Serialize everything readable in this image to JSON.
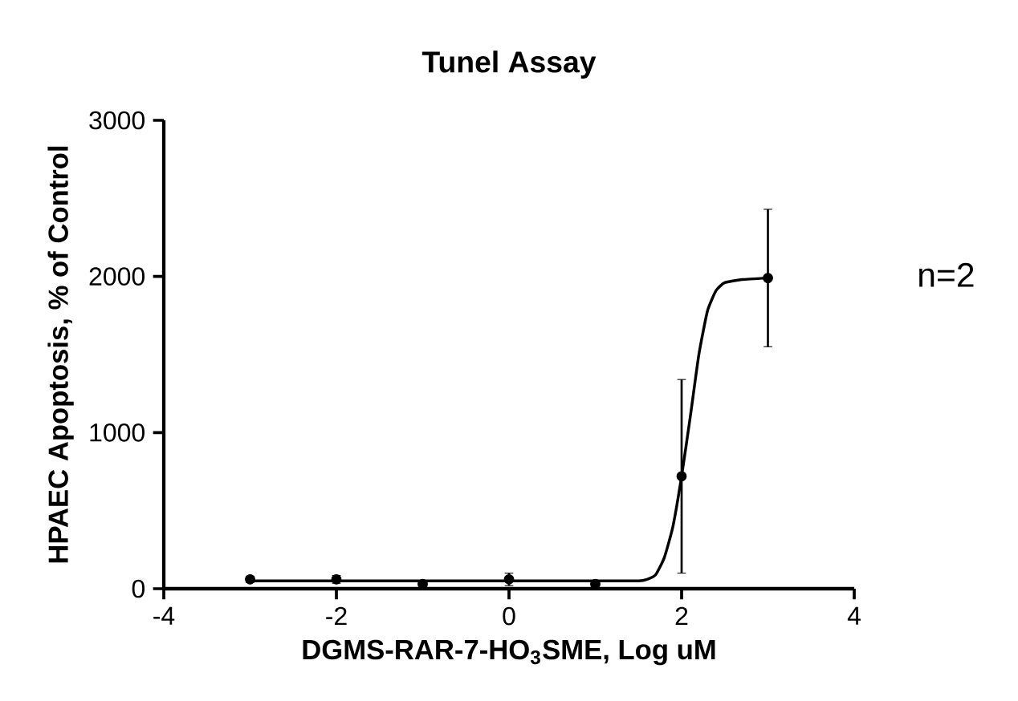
{
  "chart_data": {
    "type": "scatter",
    "title": "Tunel Assay",
    "xlabel": "DGMS-RAR-7-HO$_{3}$SME, Log uM",
    "ylabel": "HPAEC Apoptosis, % of Control",
    "annotations": [
      "n=2"
    ],
    "xlim": [
      -4,
      4
    ],
    "xticks": [
      -4,
      -2,
      0,
      2,
      4
    ],
    "ylim": [
      0,
      3000
    ],
    "yticks": [
      0,
      1000,
      2000,
      3000
    ],
    "grid": false,
    "series": [
      {
        "color": "#000000",
        "marker": "circle",
        "x": [
          -3,
          -2,
          -1,
          0,
          1,
          2,
          3
        ],
        "values": [
          60,
          60,
          30,
          60,
          30,
          720,
          1990
        ],
        "errors": [
          20,
          25,
          10,
          40,
          10,
          620,
          440
        ]
      },
      {
        "type": "line",
        "color": "#000000",
        "marker": "none",
        "x": [
          -3,
          -2,
          -1,
          0,
          1,
          1.5,
          1.6,
          1.7,
          1.8,
          1.9,
          2.0,
          2.1,
          2.2,
          2.3,
          2.4,
          2.5,
          2.7,
          3
        ],
        "values": [
          50,
          50,
          50,
          50,
          50,
          50,
          60,
          90,
          200,
          400,
          720,
          1100,
          1500,
          1780,
          1910,
          1960,
          1980,
          1990
        ]
      }
    ]
  }
}
